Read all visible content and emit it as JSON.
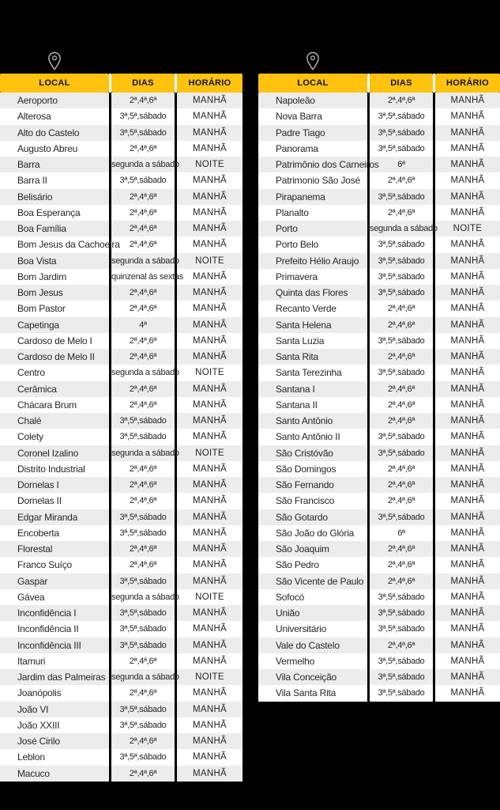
{
  "page": {
    "background": "#000000",
    "description": "Coleta de lixo - quadro de bairros, dias e horários"
  },
  "colors": {
    "header_bg": "#FFC20E",
    "header_text": "#121212",
    "row_stripe": "#ECECEC",
    "row_white": "#FFFFFF",
    "body_text": "#262626",
    "separator": "#000000",
    "pin_stroke": "#D9D9D9"
  },
  "icons": {
    "left_pin": "location-pin",
    "right_pin": "location-pin"
  },
  "headers": {
    "local": "LOCAL",
    "dias": "DIAS",
    "horario": "HORÁRIO"
  },
  "tables": {
    "left": {
      "rows": [
        {
          "local": "Aeroporto",
          "dias": "2ª,4ª,6ª",
          "horario": "MANHÃ"
        },
        {
          "local": "Alterosa",
          "dias": "3ª,5ª,sábado",
          "horario": "MANHÃ"
        },
        {
          "local": "Alto do Castelo",
          "dias": "3ª,5ª,sábado",
          "horario": "MANHÃ"
        },
        {
          "local": "Augusto Abreu",
          "dias": "2ª,4ª,6ª",
          "horario": "MANHÃ"
        },
        {
          "local": "Barra",
          "dias": "segunda a sábado",
          "horario": "NOITE"
        },
        {
          "local": "Barra II",
          "dias": "3ª,5ª,sábado",
          "horario": "MANHÃ"
        },
        {
          "local": "Belisário",
          "dias": "2ª,4ª,6ª",
          "horario": "MANHÃ"
        },
        {
          "local": "Boa Esperança",
          "dias": "2ª,4ª,6ª",
          "horario": "MANHÃ"
        },
        {
          "local": "Boa Família",
          "dias": "2ª,4ª,6ª",
          "horario": "MANHÃ"
        },
        {
          "local": "Bom Jesus da Cachoeira",
          "dias": "2ª,4ª,6ª",
          "horario": "MANHÃ"
        },
        {
          "local": "Boa Vista",
          "dias": "segunda a sábado",
          "horario": "NOITE"
        },
        {
          "local": "Bom Jardim",
          "dias": "quinzenal às sextas",
          "horario": "MANHÃ"
        },
        {
          "local": "Bom Jesus",
          "dias": "2ª,4ª,6ª",
          "horario": "MANHÃ"
        },
        {
          "local": "Bom Pastor",
          "dias": "2ª,4ª,6ª",
          "horario": "MANHÃ"
        },
        {
          "local": "Capetinga",
          "dias": "4ª",
          "horario": "MANHÃ"
        },
        {
          "local": "Cardoso de Melo I",
          "dias": "2ª,4ª,6ª",
          "horario": "MANHÃ"
        },
        {
          "local": "Cardoso de Melo II",
          "dias": "2ª,4ª,6ª",
          "horario": "MANHÃ"
        },
        {
          "local": "Centro",
          "dias": "segunda a sábado",
          "horario": "NOITE"
        },
        {
          "local": "Cerâmica",
          "dias": "2ª,4ª,6ª",
          "horario": "MANHÃ"
        },
        {
          "local": "Chácara Brum",
          "dias": "2ª,4ª,6ª",
          "horario": "MANHÃ"
        },
        {
          "local": "Chalé",
          "dias": "3ª,5ª,sábado",
          "horario": "MANHÃ"
        },
        {
          "local": "Colety",
          "dias": "3ª,5ª,sábado",
          "horario": "MANHÃ"
        },
        {
          "local": "Coronel Izalino",
          "dias": "segunda a sábado",
          "horario": "NOITE"
        },
        {
          "local": "Distrito Industrial",
          "dias": "2ª,4ª,6ª",
          "horario": "MANHÃ"
        },
        {
          "local": "Dornelas I",
          "dias": "2ª,4ª,6ª",
          "horario": "MANHÃ"
        },
        {
          "local": "Dornelas II",
          "dias": "2ª,4ª,6ª",
          "horario": "MANHÃ"
        },
        {
          "local": "Edgar Miranda",
          "dias": "3ª,5ª,sábado",
          "horario": "MANHÃ"
        },
        {
          "local": "Encoberta",
          "dias": "3ª,5ª,sábado",
          "horario": "MANHÃ"
        },
        {
          "local": "Florestal",
          "dias": "2ª,4ª,6ª",
          "horario": "MANHÃ"
        },
        {
          "local": "Franco Suíço",
          "dias": "2ª,4ª,6ª",
          "horario": "MANHÃ"
        },
        {
          "local": "Gaspar",
          "dias": "3ª,5ª,sábado",
          "horario": "MANHÃ"
        },
        {
          "local": "Gávea",
          "dias": "segunda a sábado",
          "horario": "NOITE"
        },
        {
          "local": "Inconfidência I",
          "dias": "3ª,5ª,sábado",
          "horario": "MANHÃ"
        },
        {
          "local": "Inconfidência II",
          "dias": "3ª,5ª,sábado",
          "horario": "MANHÃ"
        },
        {
          "local": "Inconfidência III",
          "dias": "3ª,5ª,sábado",
          "horario": "MANHÃ"
        },
        {
          "local": "Itamuri",
          "dias": "2ª,4ª,6ª",
          "horario": "MANHÃ"
        },
        {
          "local": "Jardim das Palmeiras",
          "dias": "segunda a sábado",
          "horario": "NOITE"
        },
        {
          "local": "Joanópolis",
          "dias": "2ª,4ª,6ª",
          "horario": "MANHÃ"
        },
        {
          "local": "João VI",
          "dias": "3ª,5ª,sábado",
          "horario": "MANHÃ"
        },
        {
          "local": "João XXIII",
          "dias": "3ª,5ª,sábado",
          "horario": "MANHÃ"
        },
        {
          "local": "José Cirilo",
          "dias": "2ª,4ª,6ª",
          "horario": "MANHÃ"
        },
        {
          "local": "Leblon",
          "dias": "3ª,5ª,sábado",
          "horario": "MANHÃ"
        },
        {
          "local": "Macuco",
          "dias": "2ª,4ª,6ª",
          "horario": "MANHÃ"
        }
      ]
    },
    "right": {
      "rows": [
        {
          "local": "Napoleão",
          "dias": "2ª,4ª,6ª",
          "horario": "MANHÃ"
        },
        {
          "local": "Nova Barra",
          "dias": "3ª,5ª,sábado",
          "horario": "MANHÃ"
        },
        {
          "local": "Padre Tiago",
          "dias": "3ª,5ª,sábado",
          "horario": "MANHÃ"
        },
        {
          "local": "Panorama",
          "dias": "3ª,5ª,sábado",
          "horario": "MANHÃ"
        },
        {
          "local": "Patrimônio dos Carneiros",
          "dias": "6ª",
          "horario": "MANHÃ"
        },
        {
          "local": "Patrimonio São José",
          "dias": "2ª,4ª,6ª",
          "horario": "MANHÃ"
        },
        {
          "local": "Pirapanema",
          "dias": "3ª,5ª,sábado",
          "horario": "MANHÃ"
        },
        {
          "local": "Planalto",
          "dias": "2ª,4ª,6ª",
          "horario": "MANHÃ"
        },
        {
          "local": "Porto",
          "dias": "segunda a sábado",
          "horario": "NOITE"
        },
        {
          "local": "Porto Belo",
          "dias": "3ª,5ª,sábado",
          "horario": "MANHÃ"
        },
        {
          "local": "Prefeito Hélio Araujo",
          "dias": "3ª,5ª,sábado",
          "horario": "MANHÃ"
        },
        {
          "local": "Primavera",
          "dias": "3ª,5ª,sábado",
          "horario": "MANHÃ"
        },
        {
          "local": "Quinta das Flores",
          "dias": "3ª,5ª,sábado",
          "horario": "MANHÃ"
        },
        {
          "local": "Recanto Verde",
          "dias": "2ª,4ª,6ª",
          "horario": "MANHÃ"
        },
        {
          "local": "Santa Helena",
          "dias": "2ª,4ª,6ª",
          "horario": "MANHÃ"
        },
        {
          "local": "Santa Luzia",
          "dias": "3ª,5ª,sábado",
          "horario": "MANHÃ"
        },
        {
          "local": "Santa Rita",
          "dias": "2ª,4ª,6ª",
          "horario": "MANHÃ"
        },
        {
          "local": "Santa Terezinha",
          "dias": "3ª,5ª,sábado",
          "horario": "MANHÃ"
        },
        {
          "local": "Santana I",
          "dias": "2ª,4ª,6ª",
          "horario": "MANHÃ"
        },
        {
          "local": "Santana II",
          "dias": "2ª,4ª,6ª",
          "horario": "MANHÃ"
        },
        {
          "local": "Santo Antônio",
          "dias": "2ª,4ª,6ª",
          "horario": "MANHÃ"
        },
        {
          "local": "Santo Antônio II",
          "dias": "3ª,5ª,sábado",
          "horario": "MANHÃ"
        },
        {
          "local": "São Cristóvão",
          "dias": "3ª,5ª,sábado",
          "horario": "MANHÃ"
        },
        {
          "local": "São Domingos",
          "dias": "2ª,4ª,6ª",
          "horario": "MANHÃ"
        },
        {
          "local": "São Fernando",
          "dias": "2ª,4ª,6ª",
          "horario": "MANHÃ"
        },
        {
          "local": "São Francisco",
          "dias": "2ª,4ª,6ª",
          "horario": "MANHÃ"
        },
        {
          "local": "São Gotardo",
          "dias": "3ª,5ª,sábado",
          "horario": "MANHÃ"
        },
        {
          "local": "São João do Glória",
          "dias": "6ª",
          "horario": "MANHÃ"
        },
        {
          "local": "São Joaquim",
          "dias": "2ª,4ª,6ª",
          "horario": "MANHÃ"
        },
        {
          "local": "São Pedro",
          "dias": "2ª,4ª,6ª",
          "horario": "MANHÃ"
        },
        {
          "local": "São Vicente de Paulo",
          "dias": "2ª,4ª,6ª",
          "horario": "MANHÃ"
        },
        {
          "local": "Sofocó",
          "dias": "3ª,5ª,sábado",
          "horario": "MANHÃ"
        },
        {
          "local": "União",
          "dias": "3ª,5ª,sábado",
          "horario": "MANHÃ"
        },
        {
          "local": "Universitário",
          "dias": "3ª,5ª,sábado",
          "horario": "MANHÃ"
        },
        {
          "local": "Vale do Castelo",
          "dias": "2ª,4ª,6ª",
          "horario": "MANHÃ"
        },
        {
          "local": "Vermelho",
          "dias": "3ª,5ª,sábado",
          "horario": "MANHÃ"
        },
        {
          "local": "Vila Conceição",
          "dias": "3ª,5ª,sábado",
          "horario": "MANHÃ"
        },
        {
          "local": "Vila Santa Rita",
          "dias": "3ª,5ª,sábado",
          "horario": "MANHÃ"
        }
      ]
    }
  }
}
